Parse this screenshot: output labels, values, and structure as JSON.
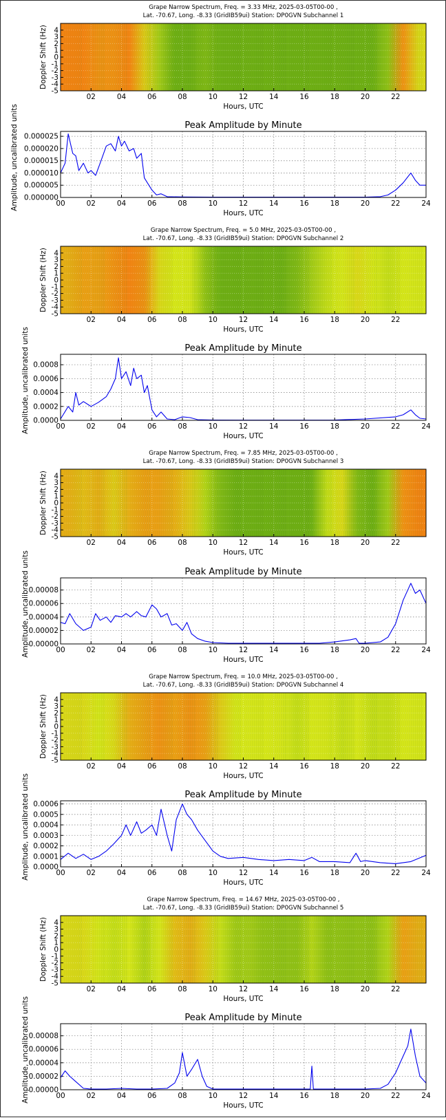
{
  "figure": {
    "spec_xlabel": "Hours, UTC",
    "spec_ylabel": "Doppler Shift (Hz)",
    "amp_title": "Peak Amplitude by Minute",
    "amp_xlabel": "Hours, UTC",
    "amp_ylabel": "Amplitude, uncalibrated units",
    "spec_xticks": [
      "02",
      "04",
      "06",
      "08",
      "10",
      "12",
      "14",
      "16",
      "18",
      "20",
      "22"
    ],
    "spec_yticks": [
      "4",
      "3",
      "2",
      "1",
      "0",
      "-1",
      "-2",
      "-3",
      "-4",
      "-5"
    ],
    "amp_xticks": [
      "00",
      "02",
      "04",
      "06",
      "08",
      "10",
      "12",
      "14",
      "16",
      "18",
      "20",
      "22",
      "24"
    ],
    "colors": {
      "line": "#0000ee",
      "grid": "#8c8c8c",
      "spec_low": "#2a8a12",
      "spec_mid": "#d6e61a",
      "spec_high": "#ff5a10"
    }
  },
  "panels": [
    {
      "title_line1": "Grape Narrow Spectrum, Freq. = 3.33 MHz, 2025-03-05T00-00 ,",
      "title_line2": "Lat. -70.67, Long.  -8.33 (GridIB59ui) Station: DP0GVN Subchannel 1",
      "amp_yticks": [
        "0.000025",
        "0.000020",
        "0.000015",
        "0.000010",
        "0.000005",
        "0.000000"
      ]
    },
    {
      "title_line1": "Grape Narrow Spectrum, Freq. = 5.0 MHz, 2025-03-05T00-00 ,",
      "title_line2": "Lat. -70.67, Long.  -8.33 (GridIB59ui) Station: DP0GVN Subchannel 2",
      "amp_yticks": [
        "0.0008",
        "0.0006",
        "0.0004",
        "0.0002",
        "0.0000"
      ]
    },
    {
      "title_line1": "Grape Narrow Spectrum, Freq. = 7.85 MHz, 2025-03-05T00-00 ,",
      "title_line2": "Lat. -70.67, Long.  -8.33 (GridIB59ui) Station: DP0GVN Subchannel 3",
      "amp_yticks": [
        "0.00008",
        "0.00006",
        "0.00004",
        "0.00002",
        "0.00000"
      ]
    },
    {
      "title_line1": "Grape Narrow Spectrum, Freq. = 10.0 MHz, 2025-03-05T00-00 ,",
      "title_line2": "Lat. -70.67, Long.  -8.33 (GridIB59ui) Station: DP0GVN Subchannel 4",
      "amp_yticks": [
        "0.0006",
        "0.0005",
        "0.0004",
        "0.0003",
        "0.0002",
        "0.0001",
        "0.0000"
      ]
    },
    {
      "title_line1": "Grape Narrow Spectrum, Freq. = 14.67 MHz, 2025-03-05T00-00 ,",
      "title_line2": "Lat. -70.67, Long.  -8.33 (GridIB59ui) Station: DP0GVN Subchannel 5",
      "amp_yticks": [
        "0.00008",
        "0.00006",
        "0.00004",
        "0.00002",
        "0.00000"
      ]
    }
  ],
  "chart_data": [
    {
      "type": "heatmap",
      "panel": 1,
      "title": "Grape Narrow Spectrum, Freq. = 3.33 MHz, 2025-03-05T00-00 , Lat. -70.67, Long.  -8.33 (GridIB59ui) Station: DP0GVN Subchannel 1",
      "xlabel": "Hours, UTC",
      "ylabel": "Doppler Shift (Hz)",
      "xlim": [
        0,
        24
      ],
      "ylim": [
        -5,
        5
      ],
      "grid": true,
      "x": [
        0.5,
        1.5,
        2.5,
        3.5,
        4.5,
        5.5,
        6.5,
        7.5,
        8.5,
        9.5,
        10.5,
        11.5,
        12.5,
        13.5,
        14.5,
        15.5,
        16.5,
        17.5,
        18.5,
        19.5,
        20.5,
        21.5,
        22.5,
        23.5
      ],
      "intensity": [
        0.85,
        0.85,
        0.8,
        0.8,
        0.85,
        0.6,
        0.35,
        0.2,
        0.2,
        0.25,
        0.2,
        0.2,
        0.2,
        0.2,
        0.2,
        0.2,
        0.2,
        0.2,
        0.2,
        0.2,
        0.2,
        0.3,
        0.8,
        0.55
      ]
    },
    {
      "type": "line",
      "panel": 1,
      "title": "Peak Amplitude by Minute",
      "xlabel": "Hours, UTC",
      "ylabel": "Amplitude, uncalibrated units",
      "xlim": [
        0,
        24
      ],
      "ylim": [
        0,
        2.7e-05
      ],
      "grid": true,
      "x": [
        0,
        0.3,
        0.5,
        0.8,
        1.0,
        1.2,
        1.5,
        1.8,
        2.0,
        2.3,
        2.6,
        3.0,
        3.3,
        3.6,
        3.8,
        4.0,
        4.2,
        4.5,
        4.8,
        5.0,
        5.3,
        5.5,
        5.8,
        6.0,
        6.3,
        6.6,
        7.0,
        8,
        10,
        12,
        14,
        16,
        18,
        20,
        21,
        21.5,
        22,
        22.5,
        23,
        23.3,
        23.6,
        24
      ],
      "y": [
        1e-05,
        1.4e-05,
        2.6e-05,
        1.8e-05,
        1.7e-05,
        1.1e-05,
        1.4e-05,
        1e-05,
        1.1e-05,
        9e-06,
        1.4e-05,
        2.1e-05,
        2.2e-05,
        1.9e-05,
        2.5e-05,
        2.1e-05,
        2.3e-05,
        1.9e-05,
        2e-05,
        1.6e-05,
        1.8e-05,
        8e-06,
        5e-06,
        3e-06,
        1e-06,
        1.5e-06,
        3e-07,
        2e-07,
        1e-07,
        1e-07,
        1e-07,
        1e-07,
        1e-07,
        1e-07,
        3e-07,
        1e-06,
        3e-06,
        6e-06,
        1e-05,
        7e-06,
        5e-06,
        5e-06
      ]
    },
    {
      "type": "heatmap",
      "panel": 2,
      "title": "Grape Narrow Spectrum, Freq. = 5.0 MHz, 2025-03-05T00-00 , Lat. -70.67, Long.  -8.33 (GridIB59ui) Station: DP0GVN Subchannel 2",
      "xlabel": "Hours, UTC",
      "ylabel": "Doppler Shift (Hz)",
      "xlim": [
        0,
        24
      ],
      "ylim": [
        -5,
        5
      ],
      "grid": true,
      "x": [
        0.5,
        1.5,
        2.5,
        3.5,
        4.5,
        5.5,
        6.5,
        7.5,
        8.5,
        9.5,
        10.5,
        11.5,
        12.5,
        13.5,
        14.5,
        15.5,
        16.5,
        17.5,
        18.5,
        19.5,
        20.5,
        21.5,
        22.5,
        23.5
      ],
      "intensity": [
        0.7,
        0.75,
        0.75,
        0.8,
        0.85,
        0.8,
        0.55,
        0.5,
        0.5,
        0.3,
        0.2,
        0.2,
        0.2,
        0.2,
        0.2,
        0.25,
        0.35,
        0.45,
        0.5,
        0.55,
        0.5,
        0.45,
        0.5,
        0.5
      ]
    },
    {
      "type": "line",
      "panel": 2,
      "title": "Peak Amplitude by Minute",
      "xlabel": "Hours, UTC",
      "ylabel": "Amplitude, uncalibrated units",
      "xlim": [
        0,
        24
      ],
      "ylim": [
        0,
        0.00095
      ],
      "grid": true,
      "x": [
        0,
        0.5,
        0.8,
        1.0,
        1.2,
        1.5,
        2.0,
        2.5,
        3.0,
        3.3,
        3.6,
        3.8,
        4.0,
        4.3,
        4.6,
        4.8,
        5.0,
        5.3,
        5.5,
        5.7,
        6.0,
        6.3,
        6.6,
        7.0,
        7.5,
        8.0,
        8.5,
        9.0,
        10,
        12,
        14,
        16,
        18,
        20,
        22,
        22.5,
        23,
        23.3,
        23.6,
        24
      ],
      "y": [
        2e-05,
        0.0002,
        0.00012,
        0.0004,
        0.00022,
        0.00027,
        0.0002,
        0.00026,
        0.00034,
        0.00045,
        0.0006,
        0.0009,
        0.0006,
        0.0007,
        0.0005,
        0.00075,
        0.0006,
        0.00065,
        0.0004,
        0.0005,
        0.00015,
        5e-05,
        0.00012,
        2e-05,
        1e-05,
        5e-05,
        4e-05,
        1e-05,
        5e-06,
        3e-06,
        3e-06,
        3e-06,
        5e-06,
        2e-05,
        5e-05,
        8e-05,
        0.00015,
        8e-05,
        3e-05,
        2e-05
      ]
    },
    {
      "type": "heatmap",
      "panel": 3,
      "title": "Grape Narrow Spectrum, Freq. = 7.85 MHz, 2025-03-05T00-00 , Lat. -70.67, Long.  -8.33 (GridIB59ui) Station: DP0GVN Subchannel 3",
      "xlabel": "Hours, UTC",
      "ylabel": "Doppler Shift (Hz)",
      "xlim": [
        0,
        24
      ],
      "ylim": [
        -5,
        5
      ],
      "grid": true,
      "x": [
        0.5,
        1.5,
        2.5,
        3.5,
        4.5,
        5.5,
        6.5,
        7.5,
        8.5,
        9.5,
        10.5,
        11.5,
        12.5,
        13.5,
        14.5,
        15.5,
        16.5,
        17.5,
        18.5,
        19.5,
        20.5,
        21.5,
        22.5,
        23.5
      ],
      "intensity": [
        0.7,
        0.65,
        0.7,
        0.6,
        0.7,
        0.75,
        0.75,
        0.7,
        0.6,
        0.4,
        0.25,
        0.2,
        0.2,
        0.2,
        0.2,
        0.2,
        0.2,
        0.45,
        0.55,
        0.25,
        0.2,
        0.35,
        0.8,
        0.85
      ]
    },
    {
      "type": "line",
      "panel": 3,
      "title": "Peak Amplitude by Minute",
      "xlabel": "Hours, UTC",
      "ylabel": "Amplitude, uncalibrated units",
      "xlim": [
        0,
        24
      ],
      "ylim": [
        0,
        9.8e-05
      ],
      "grid": true,
      "x": [
        0,
        0.3,
        0.6,
        1.0,
        1.5,
        2.0,
        2.3,
        2.6,
        3.0,
        3.3,
        3.6,
        4.0,
        4.3,
        4.6,
        5.0,
        5.3,
        5.6,
        6.0,
        6.3,
        6.6,
        7.0,
        7.3,
        7.6,
        8.0,
        8.3,
        8.6,
        9.0,
        9.5,
        10,
        11,
        12,
        14,
        16,
        17,
        18,
        19,
        19.4,
        19.6,
        20,
        21,
        21.5,
        22,
        22.5,
        23,
        23.3,
        23.6,
        24
      ],
      "y": [
        3.2e-05,
        3e-05,
        4.5e-05,
        3e-05,
        2e-05,
        2.5e-05,
        4.5e-05,
        3.5e-05,
        4e-05,
        3.2e-05,
        4.2e-05,
        4e-05,
        4.5e-05,
        4e-05,
        4.8e-05,
        4.2e-05,
        4e-05,
        5.8e-05,
        5.2e-05,
        4e-05,
        4.5e-05,
        2.8e-05,
        3e-05,
        2e-05,
        3.2e-05,
        1.5e-05,
        8e-06,
        4e-06,
        2e-06,
        1e-06,
        1e-06,
        1e-06,
        1e-06,
        1e-06,
        3e-06,
        6e-06,
        8e-06,
        1e-06,
        1e-06,
        3e-06,
        1e-05,
        3e-05,
        6.5e-05,
        9e-05,
        7.5e-05,
        8e-05,
        6e-05
      ]
    },
    {
      "type": "heatmap",
      "panel": 4,
      "title": "Grape Narrow Spectrum, Freq. = 10.0 MHz, 2025-03-05T00-00 , Lat. -70.67, Long.  -8.33 (GridIB59ui) Station: DP0GVN Subchannel 4",
      "xlabel": "Hours, UTC",
      "ylabel": "Doppler Shift (Hz)",
      "xlim": [
        0,
        24
      ],
      "ylim": [
        -5,
        5
      ],
      "grid": true,
      "x": [
        0.5,
        1.5,
        2.5,
        3.5,
        4.5,
        5.5,
        6.5,
        7.5,
        8.5,
        9.5,
        10.5,
        11.5,
        12.5,
        13.5,
        14.5,
        15.5,
        16.5,
        17.5,
        18.5,
        19.5,
        20.5,
        21.5,
        22.5,
        23.5
      ],
      "intensity": [
        0.55,
        0.55,
        0.5,
        0.55,
        0.7,
        0.75,
        0.8,
        0.75,
        0.8,
        0.75,
        0.6,
        0.5,
        0.5,
        0.5,
        0.5,
        0.45,
        0.5,
        0.5,
        0.45,
        0.5,
        0.45,
        0.45,
        0.5,
        0.5
      ]
    },
    {
      "type": "line",
      "panel": 4,
      "title": "Peak Amplitude by Minute",
      "xlabel": "Hours, UTC",
      "ylabel": "Amplitude, uncalibrated units",
      "xlim": [
        0,
        24
      ],
      "ylim": [
        0,
        0.00063
      ],
      "grid": true,
      "x": [
        0,
        0.5,
        1.0,
        1.5,
        2.0,
        2.5,
        3.0,
        3.5,
        4.0,
        4.3,
        4.6,
        5.0,
        5.3,
        5.6,
        6.0,
        6.3,
        6.6,
        7.0,
        7.3,
        7.6,
        8.0,
        8.3,
        8.6,
        9.0,
        9.5,
        10,
        10.5,
        11,
        12,
        13,
        14,
        15,
        16,
        16.5,
        17,
        18,
        19,
        19.4,
        19.7,
        20,
        21,
        22,
        23,
        24
      ],
      "y": [
        7e-05,
        0.00013,
        8e-05,
        0.00012,
        7e-05,
        0.0001,
        0.00015,
        0.00022,
        0.0003,
        0.0004,
        0.0003,
        0.00043,
        0.00032,
        0.00035,
        0.0004,
        0.0003,
        0.00055,
        0.0003,
        0.00015,
        0.00045,
        0.0006,
        0.0005,
        0.00045,
        0.00035,
        0.00025,
        0.00015,
        0.0001,
        8e-05,
        9e-05,
        7e-05,
        6e-05,
        7e-05,
        6e-05,
        9e-05,
        5e-05,
        5e-05,
        4e-05,
        0.00013,
        5e-05,
        6e-05,
        4e-05,
        3e-05,
        5e-05,
        0.00011
      ]
    },
    {
      "type": "heatmap",
      "panel": 5,
      "title": "Grape Narrow Spectrum, Freq. = 14.67 MHz, 2025-03-05T00-00 , Lat. -70.67, Long.  -8.33 (GridIB59ui) Station: DP0GVN Subchannel 5",
      "xlabel": "Hours, UTC",
      "ylabel": "Doppler Shift (Hz)",
      "xlim": [
        0,
        24
      ],
      "ylim": [
        -5,
        5
      ],
      "grid": true,
      "x": [
        0.5,
        1.5,
        2.5,
        3.5,
        4.5,
        5.5,
        6.5,
        7.5,
        8.5,
        9.5,
        10.5,
        11.5,
        12.5,
        13.5,
        14.5,
        15.5,
        16.5,
        17.5,
        18.5,
        19.5,
        20.5,
        21.5,
        22.5,
        23.5
      ],
      "intensity": [
        0.55,
        0.55,
        0.5,
        0.45,
        0.5,
        0.4,
        0.5,
        0.65,
        0.7,
        0.6,
        0.45,
        0.35,
        0.35,
        0.3,
        0.3,
        0.3,
        0.4,
        0.3,
        0.3,
        0.3,
        0.3,
        0.4,
        0.75,
        0.7
      ]
    },
    {
      "type": "line",
      "panel": 5,
      "title": "Peak Amplitude by Minute",
      "xlabel": "Hours, UTC",
      "ylabel": "Amplitude, uncalibrated units",
      "xlim": [
        0,
        24
      ],
      "ylim": [
        0,
        9.8e-05
      ],
      "grid": true,
      "x": [
        0,
        0.3,
        0.6,
        1.0,
        1.5,
        2,
        3,
        4,
        5,
        6,
        7,
        7.5,
        7.8,
        8.0,
        8.3,
        8.6,
        9.0,
        9.3,
        9.6,
        10,
        11,
        12,
        14,
        16,
        16.4,
        16.5,
        16.6,
        17,
        18,
        20,
        21,
        21.5,
        22,
        22.5,
        22.8,
        23.0,
        23.3,
        23.6,
        24
      ],
      "y": [
        1.8e-05,
        2.8e-05,
        2e-05,
        1.2e-05,
        2e-06,
        1e-06,
        1e-06,
        2e-06,
        1e-06,
        1e-06,
        2e-06,
        1e-05,
        2.5e-05,
        5.5e-05,
        2e-05,
        3e-05,
        4.5e-05,
        2e-05,
        5e-06,
        1e-06,
        1e-06,
        1e-06,
        1e-06,
        1e-06,
        1e-06,
        3.5e-05,
        1e-06,
        1e-06,
        1e-06,
        1e-06,
        2e-06,
        8e-06,
        2.5e-05,
        5e-05,
        6.5e-05,
        9e-05,
        5e-05,
        2e-05,
        1e-05
      ]
    }
  ]
}
